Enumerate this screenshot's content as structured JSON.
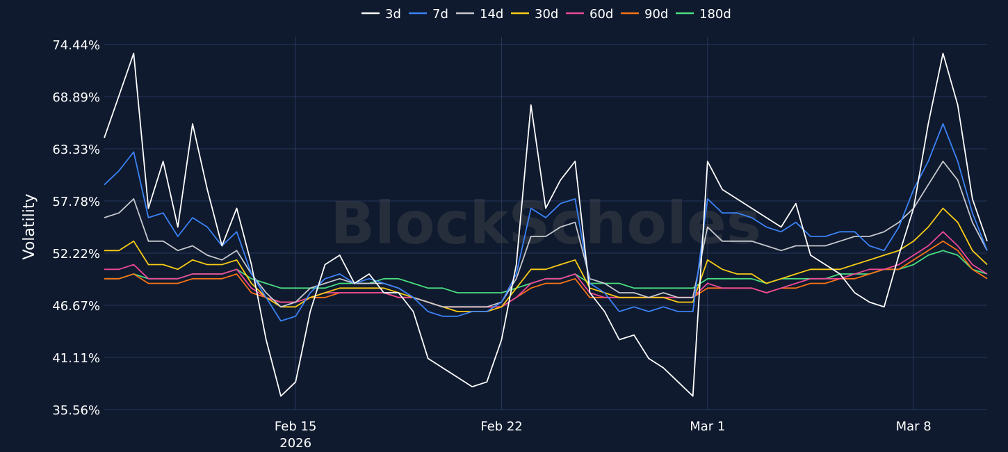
{
  "chart_data": {
    "type": "line",
    "title": "",
    "xlabel": "",
    "ylabel": "Volatility",
    "watermark": "BlockScholes",
    "ylim": [
      35.56,
      74.44
    ],
    "yticks": [
      "74.44%",
      "68.89%",
      "63.33%",
      "57.78%",
      "52.22%",
      "46.67%",
      "41.11%",
      "35.56%"
    ],
    "xticks": [
      {
        "label": "Feb 15",
        "sublabel": "2026",
        "date": "2026-02-15"
      },
      {
        "label": "Feb 22",
        "sublabel": "",
        "date": "2026-02-22"
      },
      {
        "label": "Mar 1",
        "sublabel": "",
        "date": "2026-03-01"
      },
      {
        "label": "Mar 8",
        "sublabel": "",
        "date": "2026-03-08"
      }
    ],
    "xlim": [
      "2026-02-08T12:00",
      "2026-03-10T12:00"
    ],
    "grid": true,
    "legend_position": "top-center",
    "x": [
      "2026-02-08T12:00",
      "2026-02-09T00:00",
      "2026-02-09T12:00",
      "2026-02-10T00:00",
      "2026-02-10T12:00",
      "2026-02-11T00:00",
      "2026-02-11T12:00",
      "2026-02-12T00:00",
      "2026-02-12T12:00",
      "2026-02-13T00:00",
      "2026-02-13T12:00",
      "2026-02-14T00:00",
      "2026-02-14T12:00",
      "2026-02-15T00:00",
      "2026-02-15T12:00",
      "2026-02-16T00:00",
      "2026-02-16T12:00",
      "2026-02-17T00:00",
      "2026-02-17T12:00",
      "2026-02-18T00:00",
      "2026-02-18T12:00",
      "2026-02-19T00:00",
      "2026-02-19T12:00",
      "2026-02-20T00:00",
      "2026-02-20T12:00",
      "2026-02-21T00:00",
      "2026-02-21T12:00",
      "2026-02-22T00:00",
      "2026-02-22T12:00",
      "2026-02-23T00:00",
      "2026-02-23T12:00",
      "2026-02-24T00:00",
      "2026-02-24T12:00",
      "2026-02-25T00:00",
      "2026-02-25T12:00",
      "2026-02-26T00:00",
      "2026-02-26T12:00",
      "2026-02-27T00:00",
      "2026-02-27T12:00",
      "2026-02-28T00:00",
      "2026-02-28T12:00",
      "2026-03-01T00:00",
      "2026-03-01T12:00",
      "2026-03-02T00:00",
      "2026-03-02T12:00",
      "2026-03-03T00:00",
      "2026-03-03T12:00",
      "2026-03-04T00:00",
      "2026-03-04T12:00",
      "2026-03-05T00:00",
      "2026-03-05T12:00",
      "2026-03-06T00:00",
      "2026-03-06T12:00",
      "2026-03-07T00:00",
      "2026-03-07T12:00",
      "2026-03-08T00:00",
      "2026-03-08T12:00",
      "2026-03-09T00:00",
      "2026-03-09T12:00",
      "2026-03-10T00:00",
      "2026-03-10T12:00"
    ],
    "series": [
      {
        "name": "3d",
        "color": "#ffffff",
        "values": [
          64.5,
          69.0,
          73.5,
          57.0,
          62.0,
          55.0,
          66.0,
          59.0,
          53.0,
          57.0,
          51.0,
          43.0,
          37.0,
          38.5,
          46.0,
          51.0,
          52.0,
          49.0,
          50.0,
          48.0,
          48.0,
          46.0,
          41.0,
          40.0,
          39.0,
          38.0,
          38.5,
          43.0,
          51.0,
          68.0,
          57.0,
          60.0,
          62.0,
          48.0,
          46.0,
          43.0,
          43.5,
          41.0,
          40.0,
          38.5,
          37.0,
          62.0,
          59.0,
          58.0,
          57.0,
          56.0,
          55.0,
          57.5,
          52.0,
          51.0,
          50.0,
          48.0,
          47.0,
          46.5,
          52.0,
          57.0,
          66.0,
          73.5,
          68.0,
          58.0,
          53.5
        ]
      },
      {
        "name": "7d",
        "color": "#3b82f6",
        "values": [
          59.5,
          61.0,
          63.0,
          56.0,
          56.5,
          54.0,
          56.0,
          55.0,
          53.0,
          54.5,
          50.0,
          47.5,
          45.0,
          45.5,
          48.0,
          49.5,
          50.0,
          49.0,
          49.5,
          49.0,
          48.5,
          47.5,
          46.0,
          45.5,
          45.5,
          46.0,
          46.0,
          47.0,
          50.0,
          57.0,
          56.0,
          57.5,
          58.0,
          49.0,
          48.0,
          46.0,
          46.5,
          46.0,
          46.5,
          46.0,
          46.0,
          58.0,
          56.5,
          56.5,
          56.0,
          55.0,
          54.5,
          55.5,
          54.0,
          54.0,
          54.5,
          54.5,
          53.0,
          52.5,
          55.0,
          59.0,
          62.0,
          66.0,
          62.0,
          56.5,
          52.5
        ]
      },
      {
        "name": "14d",
        "color": "#c7c9cf",
        "values": [
          56.0,
          56.5,
          58.0,
          53.5,
          53.5,
          52.5,
          53.0,
          52.0,
          51.5,
          52.5,
          50.0,
          48.0,
          46.5,
          47.0,
          48.5,
          49.0,
          49.5,
          49.0,
          49.0,
          49.0,
          48.5,
          47.5,
          47.0,
          46.5,
          46.5,
          46.5,
          46.5,
          47.0,
          49.5,
          54.0,
          54.0,
          55.0,
          55.5,
          49.5,
          49.0,
          48.0,
          48.0,
          47.5,
          48.0,
          47.5,
          47.5,
          55.0,
          53.5,
          53.5,
          53.5,
          53.0,
          52.5,
          53.0,
          53.0,
          53.0,
          53.5,
          54.0,
          54.0,
          54.5,
          55.5,
          57.0,
          59.5,
          62.0,
          60.0,
          55.5,
          52.5
        ]
      },
      {
        "name": "30d",
        "color": "#facc15",
        "values": [
          52.5,
          52.5,
          53.5,
          51.0,
          51.0,
          50.5,
          51.5,
          51.0,
          51.0,
          51.5,
          49.0,
          47.5,
          46.5,
          46.5,
          47.5,
          48.0,
          48.5,
          48.5,
          48.5,
          48.5,
          48.0,
          47.5,
          47.0,
          46.5,
          46.0,
          46.0,
          46.0,
          46.5,
          48.5,
          50.5,
          50.5,
          51.0,
          51.5,
          48.5,
          48.0,
          47.5,
          47.5,
          47.5,
          47.5,
          47.0,
          47.0,
          51.5,
          50.5,
          50.0,
          50.0,
          49.0,
          49.5,
          50.0,
          50.5,
          50.5,
          50.5,
          51.0,
          51.5,
          52.0,
          52.5,
          53.5,
          55.0,
          57.0,
          55.5,
          52.5,
          51.0
        ]
      },
      {
        "name": "60d",
        "color": "#ec4899",
        "values": [
          50.5,
          50.5,
          51.0,
          49.5,
          49.5,
          49.5,
          50.0,
          50.0,
          50.0,
          50.5,
          48.5,
          47.5,
          47.0,
          47.0,
          47.5,
          48.0,
          48.0,
          48.0,
          48.0,
          48.0,
          47.5,
          47.5,
          47.0,
          46.5,
          46.5,
          46.5,
          46.5,
          46.5,
          47.5,
          49.0,
          49.5,
          49.5,
          50.0,
          48.0,
          47.5,
          47.5,
          47.5,
          47.5,
          47.5,
          47.5,
          47.5,
          49.0,
          48.5,
          48.5,
          48.5,
          48.0,
          48.5,
          49.0,
          49.5,
          49.5,
          49.5,
          50.0,
          50.5,
          50.5,
          51.0,
          52.0,
          53.0,
          54.5,
          53.0,
          51.0,
          50.0
        ]
      },
      {
        "name": "90d",
        "color": "#f97316",
        "values": [
          49.5,
          49.5,
          50.0,
          49.0,
          49.0,
          49.0,
          49.5,
          49.5,
          49.5,
          50.0,
          48.0,
          47.5,
          47.0,
          47.0,
          47.5,
          47.5,
          48.0,
          48.0,
          48.0,
          48.0,
          47.5,
          47.5,
          47.0,
          46.5,
          46.5,
          46.5,
          46.5,
          46.5,
          47.5,
          48.5,
          49.0,
          49.0,
          49.5,
          47.5,
          47.5,
          47.5,
          47.5,
          47.5,
          47.5,
          47.5,
          47.5,
          48.5,
          48.5,
          48.5,
          48.5,
          48.0,
          48.5,
          48.5,
          49.0,
          49.0,
          49.5,
          49.5,
          50.0,
          50.5,
          50.5,
          51.5,
          52.5,
          53.5,
          52.5,
          50.5,
          49.5
        ]
      },
      {
        "name": "180d",
        "color": "#4ade80",
        "values": [
          49.5,
          49.5,
          50.0,
          49.5,
          49.5,
          49.5,
          50.0,
          50.0,
          50.0,
          50.5,
          49.5,
          49.0,
          48.5,
          48.5,
          48.5,
          48.5,
          49.0,
          49.0,
          49.0,
          49.5,
          49.5,
          49.0,
          48.5,
          48.5,
          48.0,
          48.0,
          48.0,
          48.0,
          48.5,
          49.0,
          49.5,
          49.5,
          50.0,
          49.0,
          49.0,
          49.0,
          48.5,
          48.5,
          48.5,
          48.5,
          48.5,
          49.5,
          49.5,
          49.5,
          49.5,
          49.0,
          49.5,
          49.5,
          49.5,
          49.5,
          50.0,
          50.0,
          50.0,
          50.5,
          50.5,
          51.0,
          52.0,
          52.5,
          52.0,
          50.5,
          50.0
        ]
      }
    ]
  }
}
